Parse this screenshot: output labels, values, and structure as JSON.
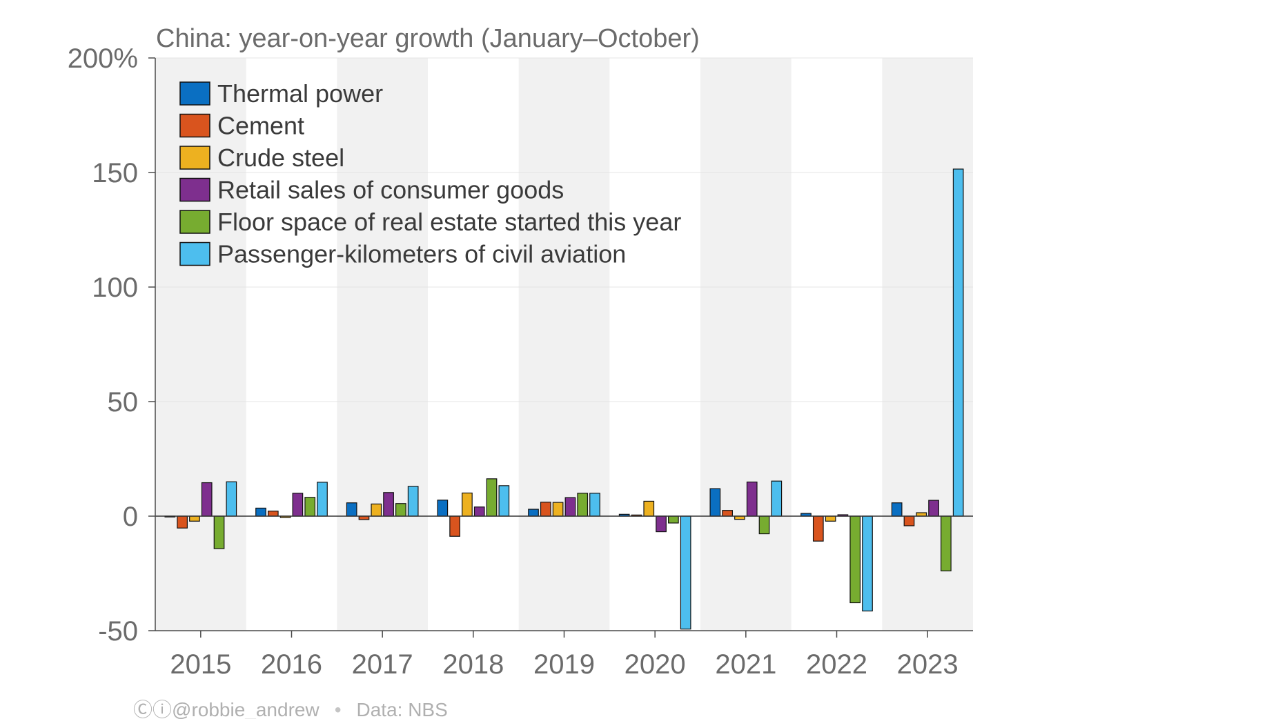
{
  "chart_data": {
    "type": "bar",
    "title": "China: year-on-year growth (January–October)",
    "xlabel": "",
    "ylabel": "",
    "ylim": [
      -50,
      200
    ],
    "y_ticks": [
      -50,
      0,
      50,
      100,
      150,
      200
    ],
    "y_tick_labels": [
      "-50",
      "0",
      "50",
      "100",
      "150",
      "200%"
    ],
    "categories": [
      "2015",
      "2016",
      "2017",
      "2018",
      "2019",
      "2020",
      "2021",
      "2022",
      "2023"
    ],
    "alternating_bands": true,
    "grid": "horizontal",
    "legend_position": "top-left",
    "series": [
      {
        "name": "Thermal power",
        "color": "#0a6fc2",
        "values": [
          -0.3,
          3.5,
          5.8,
          7.0,
          3.0,
          0.8,
          12.0,
          1.2,
          5.8
        ]
      },
      {
        "name": "Cement",
        "color": "#d9541e",
        "values": [
          -5.2,
          2.2,
          -1.5,
          -8.8,
          6.1,
          0.5,
          2.5,
          -10.9,
          -4.2
        ]
      },
      {
        "name": "Crude steel",
        "color": "#edb120",
        "values": [
          -2.2,
          -0.6,
          5.3,
          10.1,
          6.0,
          6.5,
          -1.4,
          -2.2,
          1.5
        ]
      },
      {
        "name": "Retail sales of consumer goods",
        "color": "#7e2f8e",
        "values": [
          14.6,
          10.0,
          10.3,
          4.0,
          8.1,
          -6.8,
          14.9,
          0.6,
          6.9
        ]
      },
      {
        "name": "Floor space of real estate started this year",
        "color": "#77ac30",
        "values": [
          -14.2,
          8.2,
          5.5,
          16.3,
          10.0,
          -3.0,
          -7.7,
          -37.8,
          -23.9
        ]
      },
      {
        "name": "Passenger-kilometers of civil aviation",
        "color": "#4dbeee",
        "values": [
          15.0,
          14.8,
          13.0,
          13.3,
          10.0,
          -49.3,
          15.3,
          -41.4,
          151.5
        ]
      }
    ]
  },
  "credit": {
    "cc_icons": "Ⓒⓘ",
    "author": "@robbie_andrew",
    "separator": "•",
    "source": "Data: NBS"
  },
  "colors": {
    "band": "#f1f1f1",
    "axis": "#4a4a4a",
    "gridline": "#e4e4e4",
    "zero_line": "#333333",
    "text": "#6b6b6b"
  }
}
